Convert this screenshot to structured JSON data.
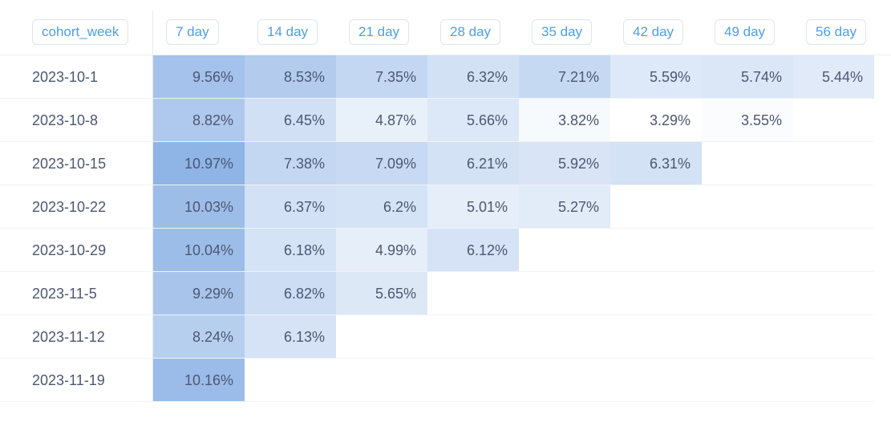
{
  "table": {
    "row_header_label": "cohort_week",
    "columns": [
      "7 day",
      "14 day",
      "21 day",
      "28 day",
      "35 day",
      "42 day",
      "49 day",
      "56 day"
    ],
    "rows": [
      {
        "label": "2023-10-1",
        "values": [
          "9.56%",
          "8.53%",
          "7.35%",
          "6.32%",
          "7.21%",
          "5.59%",
          "5.74%",
          "5.44%"
        ]
      },
      {
        "label": "2023-10-8",
        "values": [
          "8.82%",
          "6.45%",
          "4.87%",
          "5.66%",
          "3.82%",
          "3.29%",
          "3.55%"
        ]
      },
      {
        "label": "2023-10-15",
        "values": [
          "10.97%",
          "7.38%",
          "7.09%",
          "6.21%",
          "5.92%",
          "6.31%"
        ]
      },
      {
        "label": "2023-10-22",
        "values": [
          "10.03%",
          "6.37%",
          "6.2%",
          "5.01%",
          "5.27%"
        ]
      },
      {
        "label": "2023-10-29",
        "values": [
          "10.04%",
          "6.18%",
          "4.99%",
          "6.12%"
        ]
      },
      {
        "label": "2023-11-5",
        "values": [
          "9.29%",
          "6.82%",
          "5.65%"
        ]
      },
      {
        "label": "2023-11-12",
        "values": [
          "8.24%",
          "6.13%"
        ]
      },
      {
        "label": "2023-11-19",
        "values": [
          "10.16%"
        ]
      }
    ]
  },
  "colors": {
    "header_text": "#509ee3",
    "cell_scale_min": "#ffffff",
    "cell_scale_max": "#8fb4e6"
  }
}
